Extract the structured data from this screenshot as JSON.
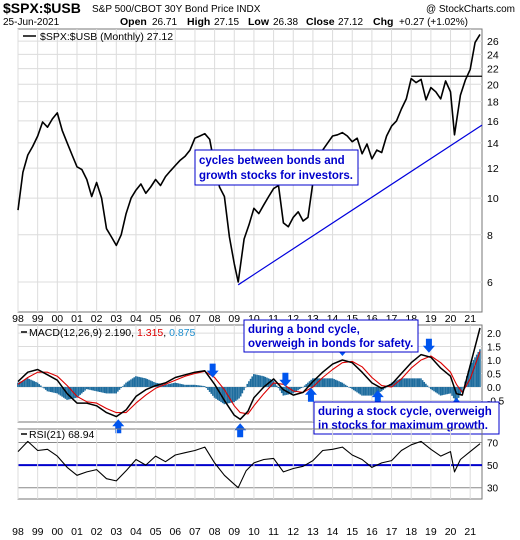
{
  "header": {
    "ticker": "$SPX:$USB",
    "name": "S&P 500/CBOT 30Y Bond Price INDX",
    "watermark": "@ StockCharts.com",
    "date": "25-Jun-2021",
    "ohlc": {
      "open_label": "Open",
      "open": "26.71",
      "high_label": "High",
      "high": "27.15",
      "low_label": "Low",
      "low": "26.38",
      "close_label": "Close",
      "close": "27.12",
      "chg_label": "Chg",
      "chg": "+0.27 (+1.02%)"
    },
    "legend": "$SPX:$USB (Monthly) 27.12"
  },
  "colors": {
    "price_line": "#000000",
    "trend_line": "#0000dd",
    "resistance_line": "#000000",
    "macd_line": "#000000",
    "signal_line": "#dd0000",
    "histogram": "#1f6d9e",
    "rsi_line": "#000000",
    "rsi_blue_line": "#0000cc",
    "arrow": "#0055ee",
    "annotation_text": "#0000cc",
    "grid": "#dcdcdc"
  },
  "chart_data": [
    {
      "type": "line",
      "panel": "price",
      "title": "$SPX:$USB (Monthly) 27.12",
      "x_tick_labels": [
        "98",
        "99",
        "00",
        "01",
        "02",
        "03",
        "04",
        "05",
        "06",
        "07",
        "08",
        "09",
        "10",
        "11",
        "12",
        "13",
        "14",
        "15",
        "16",
        "17",
        "18",
        "19",
        "20",
        "21"
      ],
      "xlim": [
        1998.0,
        2021.6
      ],
      "ylim": [
        5,
        28
      ],
      "y_ticks": [
        6,
        8,
        10,
        12,
        14,
        16,
        18,
        20,
        22,
        24,
        26
      ],
      "log_scale": true,
      "series": [
        {
          "x": [
            1998.0,
            1998.25,
            1998.5,
            1998.75,
            1999.0,
            1999.25,
            1999.5,
            1999.75,
            2000.0,
            2000.25,
            2000.5,
            2000.75,
            2001.0,
            2001.25,
            2001.5,
            2001.75,
            2002.0,
            2002.25,
            2002.5,
            2002.75,
            2003.0,
            2003.25,
            2003.5,
            2003.75,
            2004.0,
            2004.25,
            2004.5,
            2004.75,
            2005.0,
            2005.25,
            2005.5,
            2005.75,
            2006.0,
            2006.25,
            2006.5,
            2006.75,
            2007.0,
            2007.25,
            2007.5,
            2007.75,
            2008.0,
            2008.25,
            2008.5,
            2008.75,
            2009.0,
            2009.2,
            2009.5,
            2009.75,
            2010.0,
            2010.25,
            2010.5,
            2010.75,
            2011.0,
            2011.25,
            2011.5,
            2011.75,
            2012.0,
            2012.25,
            2012.5,
            2012.75,
            2013.0,
            2013.25,
            2013.5,
            2013.75,
            2014.0,
            2014.25,
            2014.5,
            2014.75,
            2015.0,
            2015.25,
            2015.5,
            2015.75,
            2016.0,
            2016.25,
            2016.5,
            2016.75,
            2017.0,
            2017.25,
            2017.5,
            2017.75,
            2018.0,
            2018.25,
            2018.5,
            2018.75,
            2019.0,
            2019.25,
            2019.5,
            2019.75,
            2020.0,
            2020.2,
            2020.5,
            2020.75,
            2021.0,
            2021.25,
            2021.5
          ],
          "y": [
            9.3,
            11.7,
            13.0,
            13.7,
            14.6,
            15.9,
            15.4,
            16.2,
            16.8,
            15.1,
            14.0,
            13.0,
            12.1,
            11.9,
            11.2,
            10.1,
            11.0,
            10.0,
            8.3,
            7.9,
            7.5,
            8.0,
            9.1,
            10.0,
            10.5,
            10.9,
            10.3,
            10.7,
            11.2,
            10.8,
            11.4,
            11.8,
            12.2,
            12.6,
            12.9,
            13.4,
            14.4,
            14.6,
            14.8,
            14.3,
            12.2,
            10.7,
            10.1,
            7.9,
            6.7,
            6.0,
            7.8,
            8.5,
            9.4,
            9.1,
            9.6,
            10.1,
            10.6,
            10.8,
            8.6,
            8.4,
            8.9,
            9.2,
            8.7,
            8.9,
            11.0,
            12.2,
            13.4,
            14.0,
            14.6,
            14.7,
            14.9,
            14.6,
            14.1,
            14.4,
            13.1,
            13.9,
            12.7,
            13.4,
            13.2,
            14.6,
            15.5,
            16.0,
            17.2,
            18.3,
            20.7,
            20.2,
            20.6,
            18.2,
            19.6,
            19.1,
            18.3,
            20.4,
            19.1,
            14.7,
            18.7,
            20.5,
            21.9,
            25.8,
            27.1
          ],
          "name": ""
        }
      ],
      "annotations": {
        "resistance_level": 21,
        "trend_line": {
          "x": [
            2009.2,
            2021.6
          ],
          "y": [
            5.9,
            15.6
          ]
        },
        "note": "cycles between bonds and growth stocks for investors."
      }
    },
    {
      "type": "line",
      "panel": "macd",
      "title": "MACD(12,26,9) 2.190, 1.315, 0.875",
      "label_parts": {
        "prefix": "MACD(12,26,9) ",
        "macd": "2.190",
        "sep1": ", ",
        "signal": "1.315",
        "sep2": ", ",
        "hist": "0.875"
      },
      "ylim": [
        -1.3,
        2.3
      ],
      "y_ticks": [
        -0.5,
        0.0,
        0.5,
        1.0,
        1.5,
        2.0
      ],
      "y_tick_labels": [
        "-0.5",
        "0.0",
        "0.5",
        "1.0",
        "1.5",
        "2.0"
      ],
      "series": [
        {
          "name": "MACD",
          "x": [
            1998.0,
            1998.5,
            1999.0,
            1999.5,
            2000.0,
            2000.5,
            2001.0,
            2001.5,
            2002.0,
            2002.5,
            2003.0,
            2003.5,
            2004.0,
            2004.5,
            2005.0,
            2005.5,
            2006.0,
            2006.5,
            2007.0,
            2007.5,
            2008.0,
            2008.5,
            2009.0,
            2009.3,
            2009.7,
            2010.0,
            2010.5,
            2011.0,
            2011.5,
            2012.0,
            2012.5,
            2013.0,
            2013.5,
            2014.0,
            2014.5,
            2015.0,
            2015.5,
            2016.0,
            2016.5,
            2017.0,
            2017.5,
            2018.0,
            2018.5,
            2019.0,
            2019.5,
            2020.0,
            2020.3,
            2020.6,
            2021.0,
            2021.5
          ],
          "y": [
            0.2,
            0.55,
            0.65,
            0.45,
            0.25,
            -0.25,
            -0.6,
            -0.6,
            -0.7,
            -0.95,
            -1.1,
            -0.85,
            -0.35,
            -0.1,
            0.05,
            0.15,
            0.35,
            0.45,
            0.55,
            0.6,
            0.1,
            -0.5,
            -1.05,
            -1.2,
            -0.9,
            -0.4,
            0.0,
            0.3,
            -0.1,
            -0.3,
            -0.2,
            0.2,
            0.55,
            0.85,
            1.0,
            0.9,
            0.55,
            0.15,
            -0.05,
            0.1,
            0.5,
            0.9,
            1.2,
            1.1,
            0.7,
            0.4,
            -0.25,
            -0.3,
            0.8,
            2.19
          ]
        },
        {
          "name": "Signal",
          "x": [
            1998.0,
            1998.5,
            1999.0,
            1999.5,
            2000.0,
            2000.5,
            2001.0,
            2001.5,
            2002.0,
            2002.5,
            2003.0,
            2003.5,
            2004.0,
            2004.5,
            2005.0,
            2005.5,
            2006.0,
            2006.5,
            2007.0,
            2007.5,
            2008.0,
            2008.5,
            2009.0,
            2009.3,
            2009.7,
            2010.0,
            2010.5,
            2011.0,
            2011.5,
            2012.0,
            2012.5,
            2013.0,
            2013.5,
            2014.0,
            2014.5,
            2015.0,
            2015.5,
            2016.0,
            2016.5,
            2017.0,
            2017.5,
            2018.0,
            2018.5,
            2019.0,
            2019.5,
            2020.0,
            2020.3,
            2020.6,
            2021.0,
            2021.5
          ],
          "y": [
            0.1,
            0.35,
            0.55,
            0.55,
            0.4,
            0.05,
            -0.35,
            -0.55,
            -0.6,
            -0.8,
            -0.95,
            -0.95,
            -0.6,
            -0.3,
            -0.05,
            0.1,
            0.25,
            0.4,
            0.5,
            0.58,
            0.35,
            -0.1,
            -0.7,
            -0.95,
            -1.0,
            -0.7,
            -0.25,
            0.15,
            0.1,
            -0.15,
            -0.2,
            0.0,
            0.35,
            0.65,
            0.9,
            0.95,
            0.75,
            0.35,
            0.05,
            0.0,
            0.3,
            0.7,
            1.0,
            1.15,
            0.9,
            0.55,
            0.1,
            -0.2,
            0.3,
            1.315
          ]
        }
      ],
      "histogram": {
        "name": "Histogram",
        "latest": 0.875
      }
    },
    {
      "type": "line",
      "panel": "rsi",
      "title": "RSI(21) 68.94",
      "label": "RSI(21) 68.94",
      "ylim": [
        20,
        82
      ],
      "y_ticks": [
        30,
        50,
        70
      ],
      "blue_level": 50,
      "series": [
        {
          "name": "RSI",
          "x": [
            1998.0,
            1998.5,
            1999.0,
            1999.5,
            2000.0,
            2000.5,
            2001.0,
            2001.5,
            2002.0,
            2002.5,
            2003.0,
            2003.5,
            2004.0,
            2004.5,
            2005.0,
            2005.5,
            2006.0,
            2006.5,
            2007.0,
            2007.5,
            2008.0,
            2008.5,
            2009.0,
            2009.2,
            2009.6,
            2010.0,
            2010.5,
            2011.0,
            2011.5,
            2012.0,
            2012.5,
            2013.0,
            2013.5,
            2014.0,
            2014.5,
            2015.0,
            2015.5,
            2016.0,
            2016.5,
            2017.0,
            2017.5,
            2018.0,
            2018.5,
            2019.0,
            2019.5,
            2020.0,
            2020.2,
            2020.5,
            2021.0,
            2021.5
          ],
          "y": [
            62,
            71,
            63,
            64,
            58,
            48,
            41,
            44,
            46,
            38,
            36,
            45,
            55,
            50,
            58,
            53,
            59,
            61,
            63,
            66,
            52,
            41,
            33,
            30,
            45,
            52,
            55,
            56,
            44,
            47,
            49,
            54,
            63,
            64,
            66,
            59,
            55,
            48,
            52,
            54,
            63,
            68,
            71,
            64,
            58,
            62,
            44,
            55,
            62,
            68.94
          ]
        }
      ]
    }
  ],
  "x_axis_labels": [
    "98",
    "99",
    "00",
    "01",
    "02",
    "03",
    "04",
    "05",
    "06",
    "07",
    "08",
    "09",
    "10",
    "11",
    "12",
    "13",
    "14",
    "15",
    "16",
    "17",
    "18",
    "19",
    "20",
    "21"
  ],
  "annotations": [
    {
      "id": "bonds-stocks",
      "text_lines": [
        "cycles between bonds and",
        "growth stocks for investors."
      ]
    },
    {
      "id": "bond-cycle",
      "text_lines": [
        "during a bond cycle,",
        "overweigh in bonds for safety."
      ]
    },
    {
      "id": "stock-cycle",
      "text_lines": [
        "during a stock cycle, overweigh",
        "in stocks for maximum growth."
      ]
    }
  ],
  "arrows": {
    "up_years": [
      2003.1,
      2009.3,
      2012.9,
      2016.3,
      2020.3
    ],
    "down_years": [
      2007.9,
      2011.6,
      2014.5,
      2018.9
    ]
  }
}
